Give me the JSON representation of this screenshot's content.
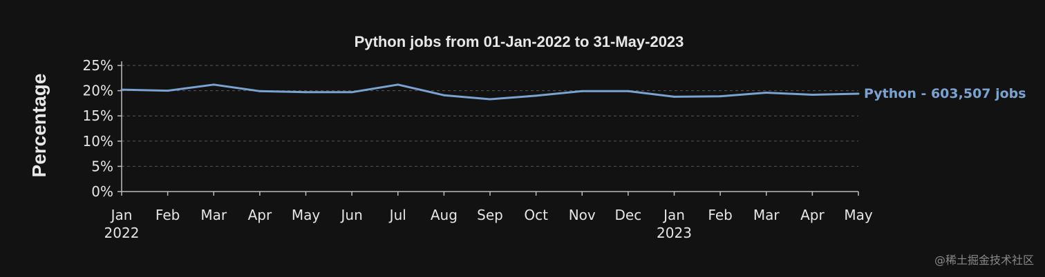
{
  "chart_data": {
    "type": "line",
    "title": "Python jobs from 01-Jan-2022 to 31-May-2023",
    "xlabel": "",
    "ylabel": "Percentage",
    "ylim": [
      0,
      25
    ],
    "yticks": [
      "0%",
      "5%",
      "10%",
      "15%",
      "20%",
      "25%"
    ],
    "ytick_values": [
      0,
      5,
      10,
      15,
      20,
      25
    ],
    "categories": [
      "Jan",
      "Feb",
      "Mar",
      "Apr",
      "May",
      "Jun",
      "Jul",
      "Aug",
      "Sep",
      "Oct",
      "Nov",
      "Dec",
      "Jan",
      "Feb",
      "Mar",
      "Apr",
      "May"
    ],
    "year_labels": [
      {
        "index": 0,
        "label": "2022"
      },
      {
        "index": 12,
        "label": "2023"
      }
    ],
    "grid": true,
    "series": [
      {
        "name": "Python - 603,507 jobs",
        "color": "#7aa3d1",
        "values": [
          20.2,
          20.0,
          21.2,
          19.9,
          19.7,
          19.7,
          21.2,
          19.1,
          18.3,
          19.0,
          19.9,
          19.9,
          18.8,
          18.9,
          19.6,
          19.2,
          19.4
        ]
      }
    ]
  },
  "watermark": "@稀土掘金技术社区"
}
